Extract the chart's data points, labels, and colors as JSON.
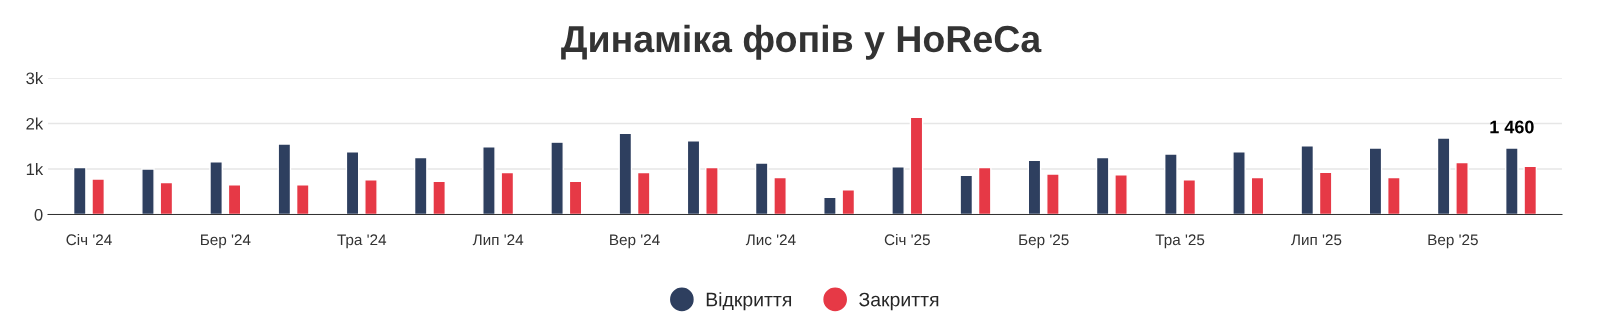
{
  "chart_data": {
    "type": "bar",
    "title": "Динаміка фопів у HoReCa",
    "categories": [
      "Січ '24",
      null,
      "Бер '24",
      null,
      "Тра '24",
      null,
      "Лип '24",
      null,
      "Вер '24",
      null,
      "Лис '24",
      null,
      "Січ '25",
      null,
      "Бер '25",
      null,
      "Тра '25",
      null,
      "Лип '25",
      null,
      "Вер '25",
      null
    ],
    "series": [
      {
        "name": "Відкриття",
        "color": "#2e3f5f",
        "values": [
          1030,
          1000,
          1160,
          1550,
          1380,
          1250,
          1490,
          1590,
          1785,
          1620,
          1130,
          380,
          1050,
          860,
          1190,
          1250,
          1330,
          1380,
          1510,
          1460,
          1680,
          1460
        ],
        "value_labels": [
          null,
          null,
          null,
          null,
          null,
          null,
          null,
          null,
          null,
          null,
          null,
          null,
          null,
          null,
          null,
          null,
          null,
          null,
          null,
          null,
          null,
          "1 460"
        ]
      },
      {
        "name": "Закриття",
        "color": "#e63946",
        "values": [
          780,
          700,
          650,
          650,
          760,
          730,
          920,
          730,
          920,
          1030,
          810,
          540,
          2135,
          1030,
          890,
          870,
          760,
          810,
          925,
          810,
          1140,
          1060
        ]
      }
    ],
    "ylim": [
      0,
      3000
    ],
    "yticks": [
      0,
      {
        "value": 1000,
        "label": "1k"
      },
      {
        "value": 2000,
        "label": "2k"
      },
      {
        "value": 3000,
        "label": "3k"
      }
    ],
    "grid": "y",
    "legend": "bottom"
  }
}
